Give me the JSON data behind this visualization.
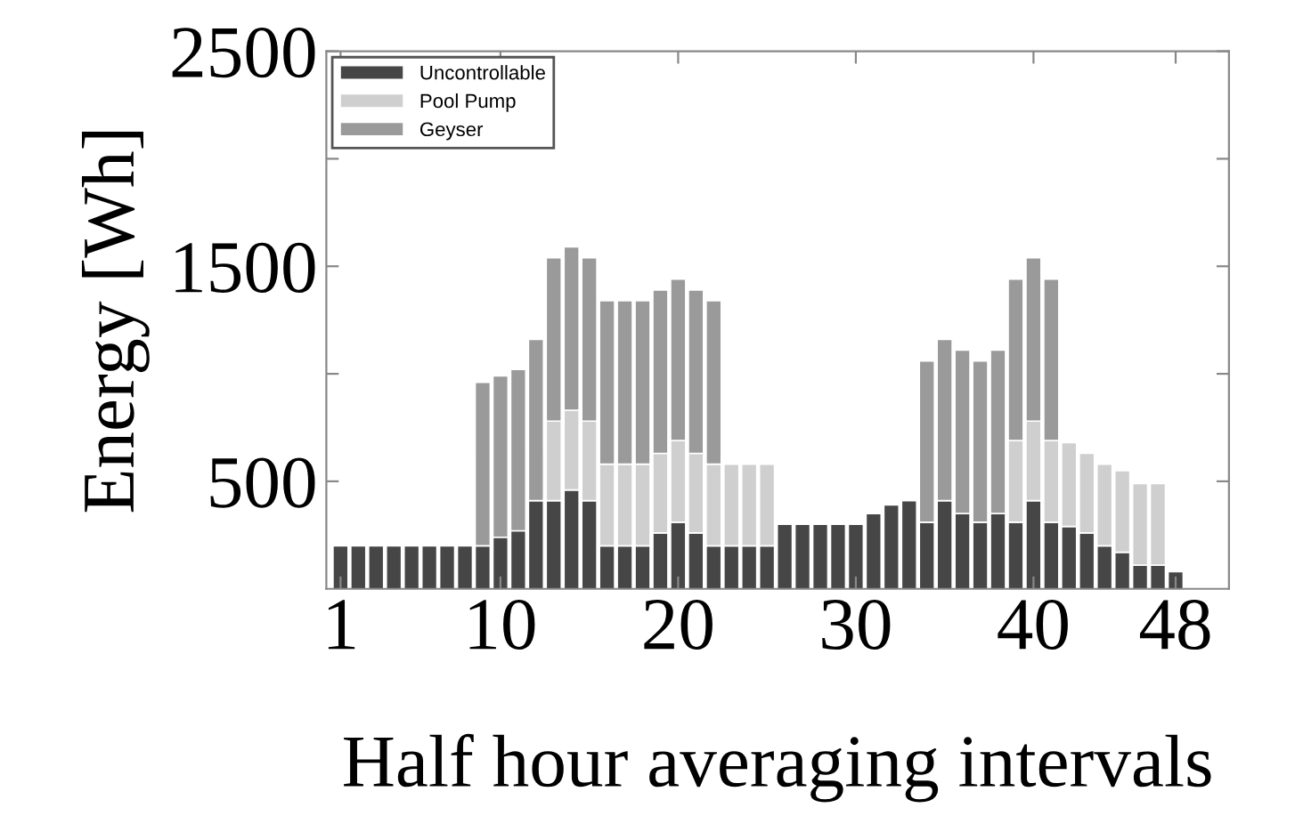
{
  "chart_data": {
    "type": "bar",
    "stacked": true,
    "xlabel": "Half hour averaging intervals",
    "ylabel": "Energy [Wh]",
    "x": [
      1,
      2,
      3,
      4,
      5,
      6,
      7,
      8,
      9,
      10,
      11,
      12,
      13,
      14,
      15,
      16,
      17,
      18,
      19,
      20,
      21,
      22,
      23,
      24,
      25,
      26,
      27,
      28,
      29,
      30,
      31,
      32,
      33,
      34,
      35,
      36,
      37,
      38,
      39,
      40,
      41,
      42,
      43,
      44,
      45,
      46,
      47,
      48
    ],
    "xlim": [
      0.2,
      51
    ],
    "xticks": [
      1,
      10,
      20,
      30,
      40,
      48
    ],
    "ylim": [
      0,
      2500
    ],
    "yticks": [
      {
        "value": 500,
        "label": "500"
      },
      {
        "value": 1000,
        "label": null
      },
      {
        "value": 1500,
        "label": "1500"
      },
      {
        "value": 2000,
        "label": null
      },
      {
        "value": 2500,
        "label": "2500"
      }
    ],
    "grid": false,
    "legend": "top left",
    "series": [
      {
        "name": "Uncontrollable",
        "color": "#464646",
        "values": [
          200,
          200,
          200,
          200,
          200,
          200,
          200,
          200,
          200,
          240,
          270,
          410,
          410,
          460,
          410,
          200,
          200,
          200,
          260,
          310,
          260,
          200,
          200,
          200,
          200,
          300,
          300,
          300,
          300,
          300,
          350,
          390,
          410,
          310,
          410,
          350,
          310,
          350,
          310,
          410,
          310,
          290,
          260,
          200,
          170,
          110,
          110,
          80
        ]
      },
      {
        "name": "Pool Pump",
        "color": "#cfcfcf",
        "values": [
          null,
          null,
          null,
          null,
          null,
          null,
          null,
          null,
          null,
          null,
          null,
          null,
          370,
          370,
          370,
          380,
          380,
          380,
          370,
          380,
          370,
          380,
          380,
          380,
          380,
          null,
          null,
          null,
          null,
          null,
          null,
          null,
          null,
          null,
          null,
          null,
          null,
          null,
          380,
          370,
          380,
          390,
          370,
          380,
          380,
          380,
          380,
          null
        ]
      },
      {
        "name": "Geyser",
        "color": "#9a9a9a",
        "values": [
          null,
          null,
          null,
          null,
          null,
          null,
          null,
          null,
          760,
          750,
          750,
          750,
          760,
          760,
          760,
          760,
          760,
          760,
          760,
          750,
          760,
          760,
          null,
          null,
          null,
          null,
          null,
          null,
          null,
          null,
          null,
          null,
          null,
          750,
          750,
          760,
          750,
          760,
          750,
          760,
          750,
          null,
          null,
          null,
          null,
          null,
          null,
          null
        ]
      }
    ]
  }
}
